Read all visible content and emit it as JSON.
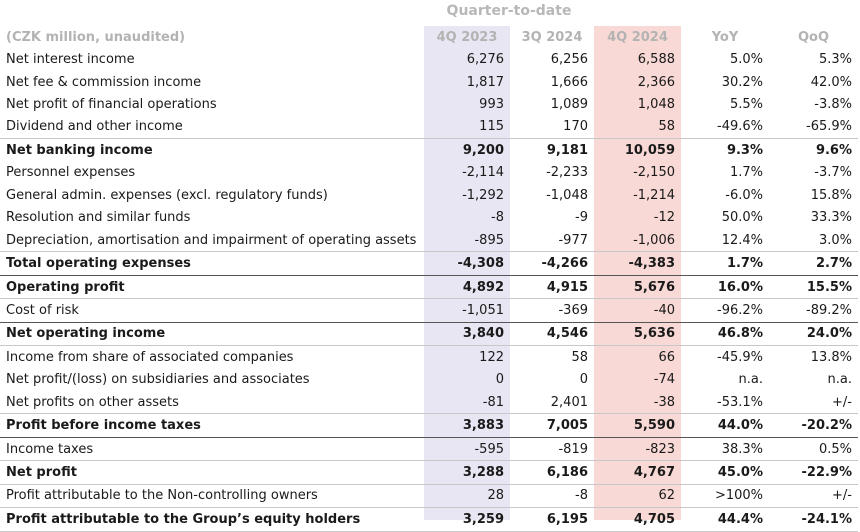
{
  "header": {
    "group_label": "Quarter-to-date",
    "columns": [
      "(CZK million, unaudited)",
      "4Q 2023",
      "3Q 2024",
      "4Q 2024",
      "YoY",
      "QoQ"
    ]
  },
  "rows": [
    {
      "label": "Net interest income",
      "values": [
        "6,276",
        "6,256",
        "6,588",
        "5.0%",
        "5.3%"
      ],
      "bold": false,
      "border": "none"
    },
    {
      "label": "Net fee & commission income",
      "values": [
        "1,817",
        "1,666",
        "2,366",
        "30.2%",
        "42.0%"
      ],
      "bold": false,
      "border": "none"
    },
    {
      "label": "Net profit of financial operations",
      "values": [
        "993",
        "1,089",
        "1,048",
        "5.5%",
        "-3.8%"
      ],
      "bold": false,
      "border": "none"
    },
    {
      "label": "Dividend and other income",
      "values": [
        "115",
        "170",
        "58",
        "-49.6%",
        "-65.9%"
      ],
      "bold": false,
      "border": "none"
    },
    {
      "label": "Net banking income",
      "values": [
        "9,200",
        "9,181",
        "10,059",
        "9.3%",
        "9.6%"
      ],
      "bold": true,
      "border": "thin"
    },
    {
      "label": "Personnel expenses",
      "values": [
        "-2,114",
        "-2,233",
        "-2,150",
        "1.7%",
        "-3.7%"
      ],
      "bold": false,
      "border": "none"
    },
    {
      "label": "General admin. expenses (excl. regulatory funds)",
      "values": [
        "-1,292",
        "-1,048",
        "-1,214",
        "-6.0%",
        "15.8%"
      ],
      "bold": false,
      "border": "none"
    },
    {
      "label": "Resolution and similar funds",
      "values": [
        "-8",
        "-9",
        "-12",
        "50.0%",
        "33.3%"
      ],
      "bold": false,
      "border": "none"
    },
    {
      "label": "Depreciation, amortisation and impairment of operating assets",
      "values": [
        "-895",
        "-977",
        "-1,006",
        "12.4%",
        "3.0%"
      ],
      "bold": false,
      "border": "none"
    },
    {
      "label": "Total operating expenses",
      "values": [
        "-4,308",
        "-4,266",
        "-4,383",
        "1.7%",
        "2.7%"
      ],
      "bold": true,
      "border": "thin"
    },
    {
      "label": "Operating profit",
      "values": [
        "4,892",
        "4,915",
        "5,676",
        "16.0%",
        "15.5%"
      ],
      "bold": true,
      "border": "thick"
    },
    {
      "label": "Cost of risk",
      "values": [
        "-1,051",
        "-369",
        "-40",
        "-96.2%",
        "-89.2%"
      ],
      "bold": false,
      "border": "thin"
    },
    {
      "label": "Net operating income",
      "values": [
        "3,840",
        "4,546",
        "5,636",
        "46.8%",
        "24.0%"
      ],
      "bold": true,
      "border": "thick"
    },
    {
      "label": "Income from share of associated companies",
      "values": [
        "122",
        "58",
        "66",
        "-45.9%",
        "13.8%"
      ],
      "bold": false,
      "border": "thin"
    },
    {
      "label": "Net profit/(loss) on subsidiaries and associates",
      "values": [
        "0",
        "0",
        "-74",
        "n.a.",
        "n.a."
      ],
      "bold": false,
      "border": "none"
    },
    {
      "label": "Net profits on other assets",
      "values": [
        "-81",
        "2,401",
        "-38",
        "-53.1%",
        "+/-"
      ],
      "bold": false,
      "border": "none"
    },
    {
      "label": "Profit before income taxes",
      "values": [
        "3,883",
        "7,005",
        "5,590",
        "44.0%",
        "-20.2%"
      ],
      "bold": true,
      "border": "thin"
    },
    {
      "label": "Income taxes",
      "values": [
        "-595",
        "-819",
        "-823",
        "38.3%",
        "0.5%"
      ],
      "bold": false,
      "border": "thick"
    },
    {
      "label": "Net profit",
      "values": [
        "3,288",
        "6,186",
        "4,767",
        "45.0%",
        "-22.9%"
      ],
      "bold": true,
      "border": "thin"
    },
    {
      "label": "Profit attributable to the Non-controlling owners",
      "values": [
        "28",
        "-8",
        "62",
        ">100%",
        "+/-"
      ],
      "bold": false,
      "border": "thin"
    },
    {
      "label": "Profit attributable to the Group’s equity holders",
      "values": [
        "3,259",
        "6,195",
        "4,705",
        "44.4%",
        "-24.1%"
      ],
      "bold": true,
      "border": "thin",
      "last": true
    }
  ]
}
